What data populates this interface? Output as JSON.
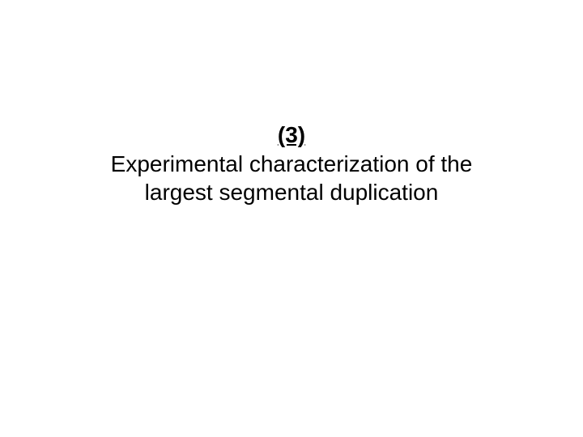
{
  "slide": {
    "section_number": "(3)",
    "title_line1": "Experimental characterization of the",
    "title_line2": "largest segmental duplication",
    "background_color": "#ffffff",
    "text_color": "#000000",
    "section_fontsize": 28,
    "title_fontsize": 28,
    "font_family": "Arial"
  }
}
